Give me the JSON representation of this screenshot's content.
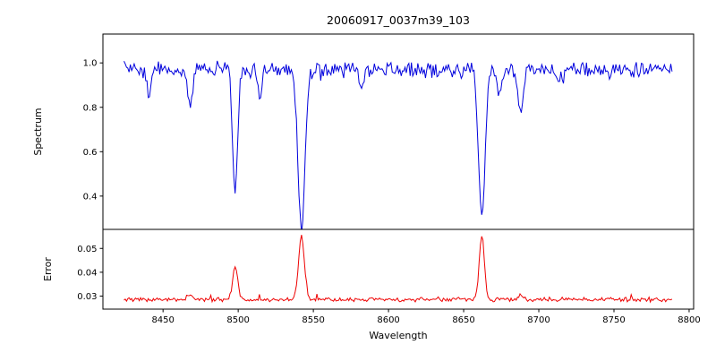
{
  "figure": {
    "title": "20060917_0037m39_103",
    "background": "#ffffff"
  },
  "seed": 20060917,
  "chart_data": [
    {
      "type": "line",
      "panel": "spectrum",
      "title": "20060917_0037m39_103",
      "ylabel": "Spectrum",
      "series_color": "#0000dd",
      "x_range": [
        8410,
        8803
      ],
      "ylim": [
        0.25,
        1.13
      ],
      "ytick_values": [
        0.4,
        0.6,
        0.8,
        1.0
      ],
      "ytick_labels": [
        "0.4",
        "0.6",
        "0.8",
        "1.0"
      ],
      "data_x_start": 8424,
      "data_x_end": 8789,
      "sample_step": 0.85,
      "continuum_level": 0.97,
      "noise_amplitude": 0.042,
      "absorption_lines": [
        {
          "center": 8440.5,
          "depth": 0.13,
          "sigma": 1.4
        },
        {
          "center": 8468.0,
          "depth": 0.16,
          "sigma": 1.5
        },
        {
          "center": 8498.0,
          "depth": 0.55,
          "sigma": 1.7
        },
        {
          "center": 8514.0,
          "depth": 0.12,
          "sigma": 1.4
        },
        {
          "center": 8542.1,
          "depth": 0.71,
          "sigma": 2.3
        },
        {
          "center": 8582.0,
          "depth": 0.07,
          "sigma": 1.4
        },
        {
          "center": 8662.1,
          "depth": 0.67,
          "sigma": 2.1
        },
        {
          "center": 8674.0,
          "depth": 0.1,
          "sigma": 1.4
        },
        {
          "center": 8688.0,
          "depth": 0.21,
          "sigma": 1.7
        },
        {
          "center": 8713.0,
          "depth": 0.07,
          "sigma": 1.3
        }
      ]
    },
    {
      "type": "line",
      "panel": "error",
      "ylabel": "Error",
      "xlabel": "Wavelength",
      "series_color": "#ee0000",
      "x_range": [
        8410,
        8803
      ],
      "xtick_values": [
        8450,
        8500,
        8550,
        8600,
        8650,
        8700,
        8750,
        8800
      ],
      "xtick_labels": [
        "8450",
        "8500",
        "8550",
        "8600",
        "8650",
        "8700",
        "8750",
        "8800"
      ],
      "ylim": [
        0.0245,
        0.058
      ],
      "ytick_values": [
        0.03,
        0.04,
        0.05
      ],
      "ytick_labels": [
        "0.03",
        "0.04",
        "0.05"
      ],
      "data_x_start": 8424,
      "data_x_end": 8789,
      "sample_step": 0.85,
      "baseline": 0.0285,
      "noise_amplitude": 0.0011,
      "error_peaks": [
        {
          "center": 8468.0,
          "height": 0.0015,
          "sigma": 1.5
        },
        {
          "center": 8498.0,
          "height": 0.0135,
          "sigma": 1.7
        },
        {
          "center": 8542.1,
          "height": 0.027,
          "sigma": 1.9
        },
        {
          "center": 8662.1,
          "height": 0.0275,
          "sigma": 1.7
        },
        {
          "center": 8688.0,
          "height": 0.002,
          "sigma": 1.5
        }
      ]
    }
  ]
}
